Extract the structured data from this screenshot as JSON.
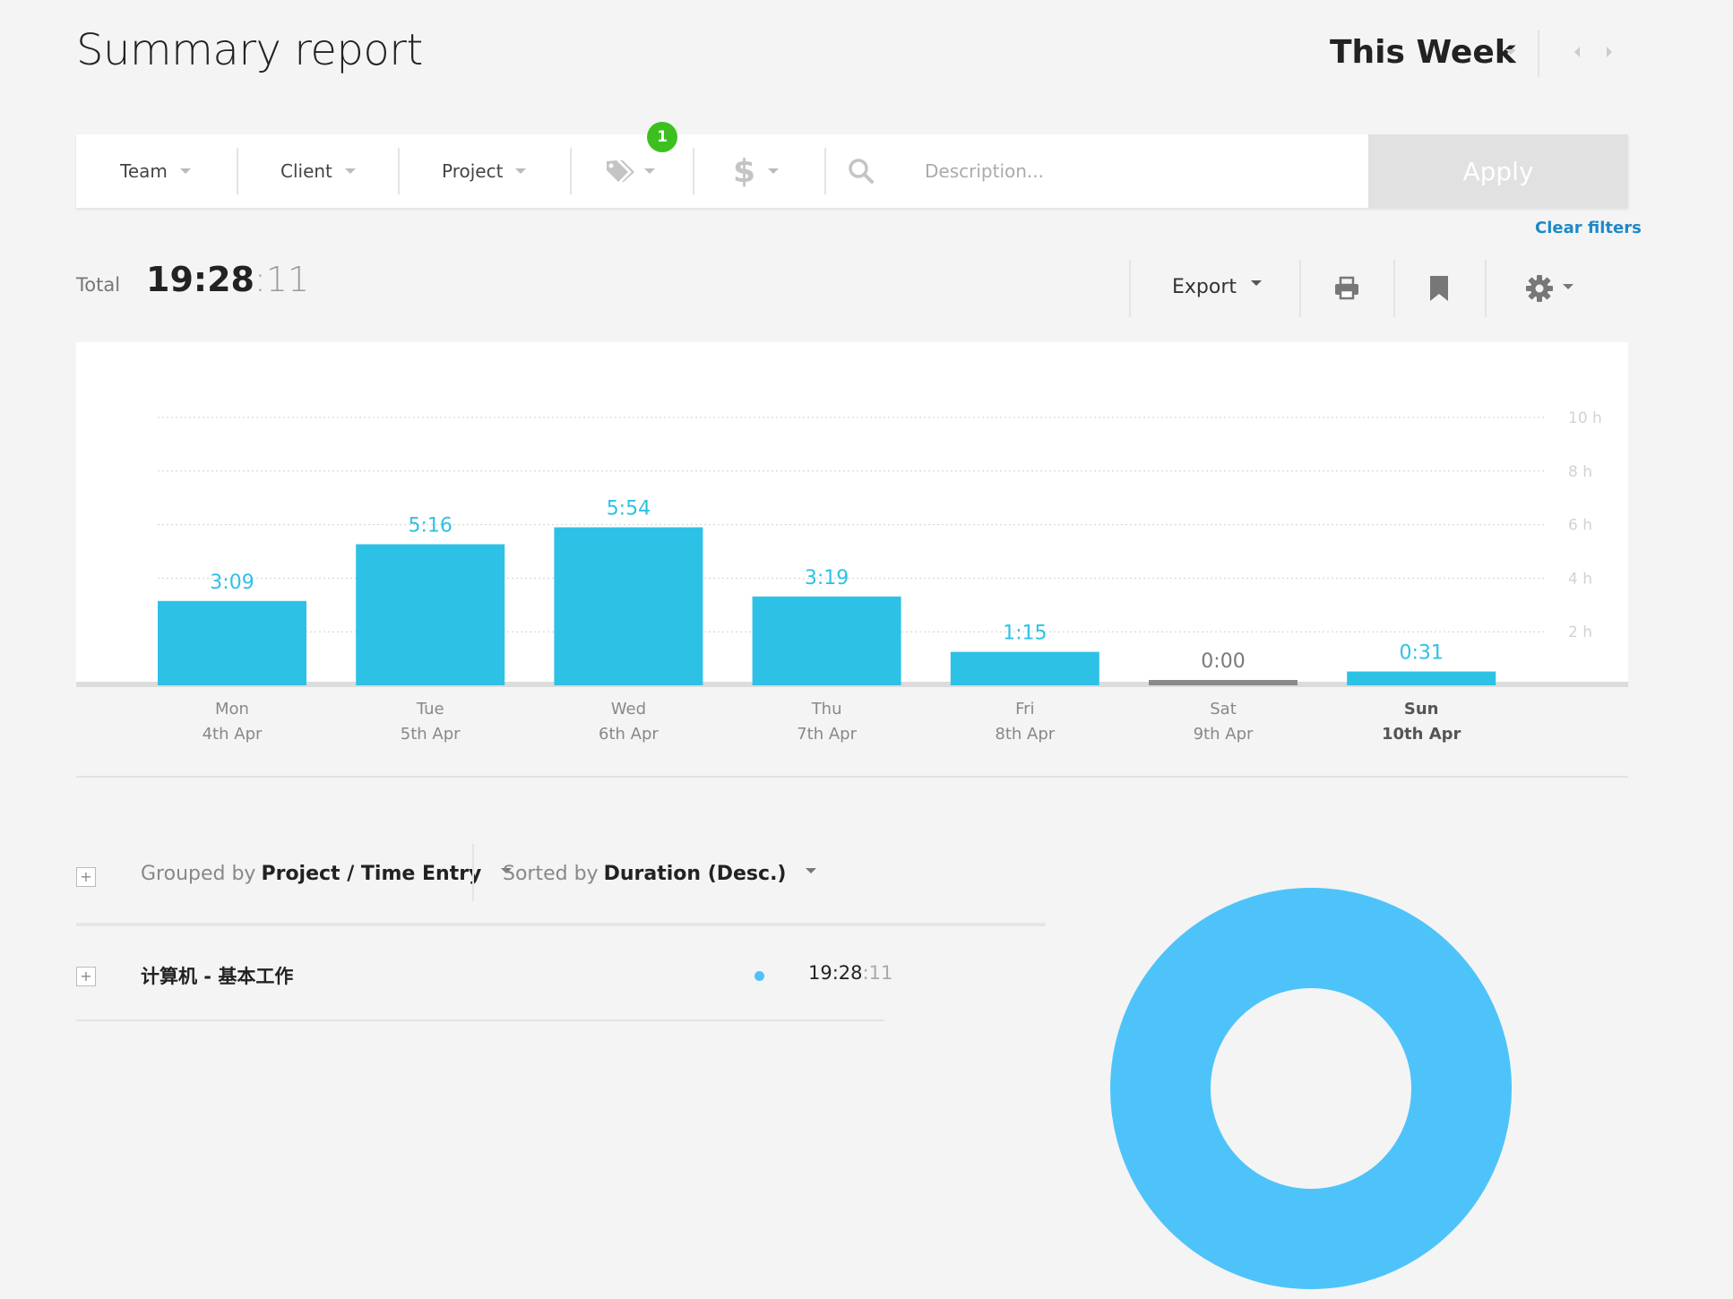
{
  "header": {
    "title": "Summary report",
    "period": "This Week"
  },
  "filters": {
    "team": "Team",
    "client": "Client",
    "project": "Project",
    "tag_badge": "1",
    "billable_symbol": "$",
    "description_placeholder": "Description...",
    "apply": "Apply",
    "clear": "Clear filters"
  },
  "totals": {
    "label": "Total",
    "hm": "19:28",
    "sec": ":11"
  },
  "toolbar": {
    "export": "Export"
  },
  "chart_data": {
    "type": "bar",
    "categories": [
      "Mon 4th Apr",
      "Tue 5th Apr",
      "Wed 6th Apr",
      "Thu 7th Apr",
      "Fri 8th Apr",
      "Sat 9th Apr",
      "Sun 10th Apr"
    ],
    "day_labels": [
      "Mon",
      "Tue",
      "Wed",
      "Thu",
      "Fri",
      "Sat",
      "Sun"
    ],
    "date_labels": [
      "4th Apr",
      "5th Apr",
      "6th Apr",
      "7th Apr",
      "8th Apr",
      "9th Apr",
      "10th Apr"
    ],
    "values": [
      3.15,
      5.267,
      5.9,
      3.317,
      1.25,
      0,
      0.517
    ],
    "value_labels": [
      "3:09",
      "5:16",
      "5:54",
      "3:19",
      "1:15",
      "0:00",
      "0:31"
    ],
    "highlight_index": 6,
    "y_ticks": [
      2,
      4,
      6,
      8,
      10
    ],
    "y_tick_labels": [
      "2 h",
      "4 h",
      "6 h",
      "8 h",
      "10 h"
    ],
    "ylim": [
      0,
      10
    ],
    "grid": true,
    "bar_color": "#2ec1e6",
    "zero_color": "#8a8a8a"
  },
  "grouping": {
    "grouped_prefix": "Grouped by",
    "grouped_value": "Project / Time Entry",
    "sorted_prefix": "Sorted by",
    "sorted_value": "Duration (Desc.)"
  },
  "rows": [
    {
      "label": "计算机 - 基本工作",
      "hm": "19:28",
      "sec": ":11",
      "color": "#4ec3fa"
    }
  ],
  "donut": {
    "share": 1.0,
    "color": "#4ec3fa"
  }
}
